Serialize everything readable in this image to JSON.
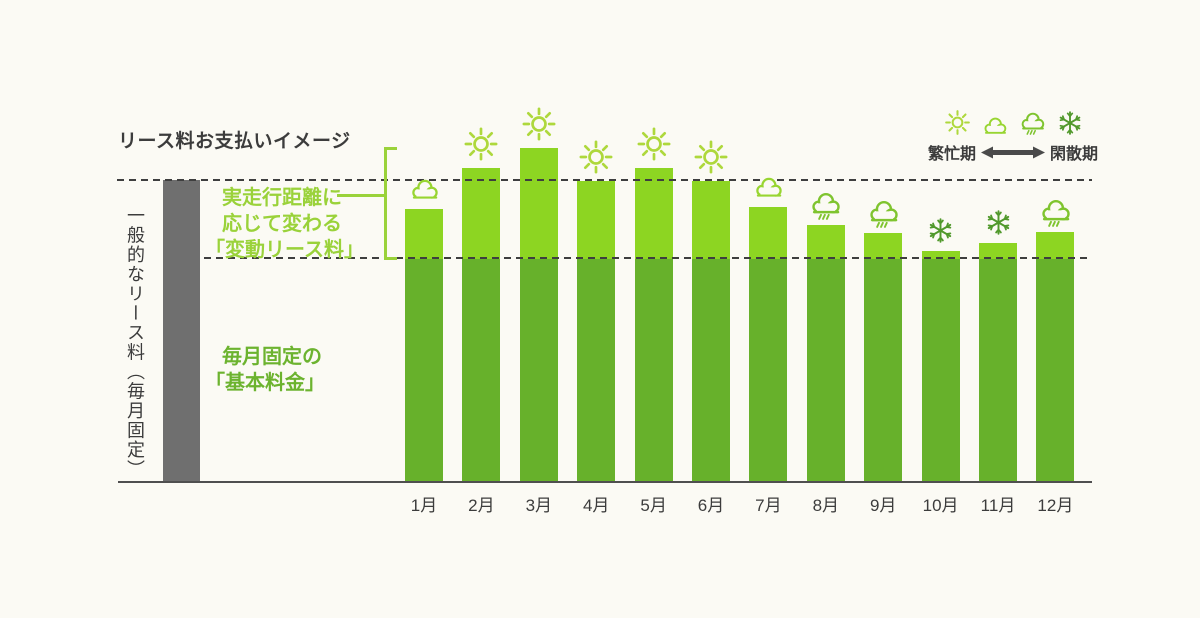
{
  "title": "リース料お支払いイメージ",
  "y_axis_label": "一般的なリース料（毎月固定）",
  "annotations": {
    "variable_fee_text": "実走行距離に応じて変わる「変動リース料」",
    "variable_fee_lines": [
      "実走行距離に",
      "応じて変わる",
      "「変動リース料」"
    ],
    "base_fee_text": "毎月固定の「基本料金」",
    "base_fee_lines": [
      "毎月固定の",
      "「基本料金」"
    ]
  },
  "legend": {
    "icons": [
      "sun",
      "cloud",
      "rain",
      "snow"
    ],
    "left_label": "繁忙期",
    "right_label": "閑散期"
  },
  "colors": {
    "background": "#fbfaf4",
    "bar_variable": "#8dd522",
    "bar_base": "#67b12b",
    "reference_bar": "#6f6f6f",
    "annotation_variable": "#9ad23a",
    "annotation_base": "#6cb32f",
    "icon_sun": "#aed83c",
    "icon_cloud": "#98d531",
    "icon_rain": "#7fc42f",
    "icon_snow": "#51992c",
    "dashed_line": "#3e3e3e",
    "axis": "#4f4f4f",
    "text": "#3c3c3c",
    "arrow": "#4a4a4a"
  },
  "chart_data": {
    "type": "bar",
    "stacked": true,
    "title": "リース料お支払いイメージ",
    "categories": [
      "1月",
      "2月",
      "3月",
      "4月",
      "5月",
      "6月",
      "7月",
      "8月",
      "9月",
      "10月",
      "11月",
      "12月"
    ],
    "series": [
      {
        "name": "毎月固定の「基本料金」",
        "role": "base",
        "values": [
          224,
          224,
          224,
          224,
          224,
          224,
          224,
          224,
          224,
          224,
          224,
          224
        ]
      },
      {
        "name": "実走行距離に応じて変わる「変動リース料」",
        "role": "variable",
        "values": [
          50,
          91,
          111,
          78,
          91,
          78,
          52,
          34,
          26,
          8,
          16,
          27
        ]
      }
    ],
    "unit": "relative height (screen px), no numeric axis shown",
    "weather_icons": [
      "cloud",
      "sun",
      "sun",
      "sun",
      "sun",
      "sun",
      "cloud",
      "rain",
      "rain",
      "snow",
      "snow",
      "rain"
    ],
    "reference_bar": {
      "label": "一般的なリース料（毎月固定）",
      "value": 303
    },
    "grid": "two horizontal dashed reference lines (peak level, base-fee level)",
    "legend_note": "繁忙期（sun）→ 閑散期（snow）"
  }
}
